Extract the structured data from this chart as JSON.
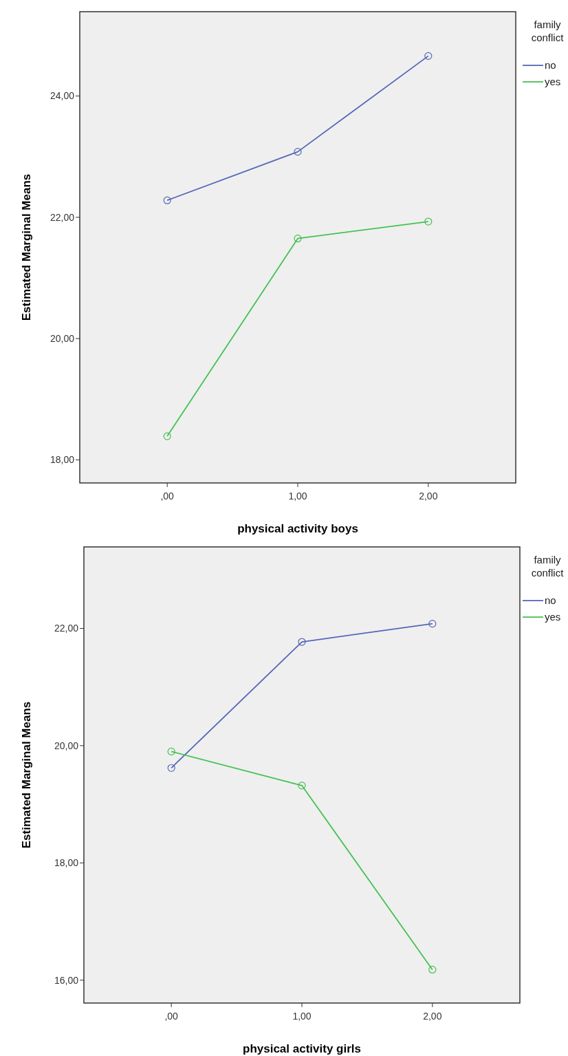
{
  "chart_data": [
    {
      "type": "line",
      "xlabel": "physical activity boys",
      "ylabel": "Estimated Marginal Means",
      "legend_title": "family conflict",
      "legend": "right",
      "marker": "circle",
      "grid": false,
      "categories": [
        ",00",
        "1,00",
        "2,00"
      ],
      "ylim": [
        17.62,
        25.39
      ],
      "yticks": [
        {
          "value": 18,
          "label": "18,00"
        },
        {
          "value": 20,
          "label": "20,00"
        },
        {
          "value": 22,
          "label": "22,00"
        },
        {
          "value": 24,
          "label": "24,00"
        }
      ],
      "series": [
        {
          "name": "no",
          "color": "#5466b8",
          "values": [
            22.28,
            23.08,
            24.66
          ]
        },
        {
          "name": "yes",
          "color": "#44c152",
          "values": [
            18.39,
            21.65,
            21.93
          ]
        }
      ]
    },
    {
      "type": "line",
      "xlabel": "physical activity girls",
      "ylabel": "Estimated Marginal Means",
      "legend_title": "family conflict",
      "legend": "right",
      "marker": "circle",
      "grid": false,
      "categories": [
        ",00",
        "1,00",
        "2,00"
      ],
      "ylim": [
        15.61,
        23.39
      ],
      "yticks": [
        {
          "value": 16,
          "label": "16,00"
        },
        {
          "value": 18,
          "label": "18,00"
        },
        {
          "value": 20,
          "label": "20,00"
        },
        {
          "value": 22,
          "label": "22,00"
        }
      ],
      "series": [
        {
          "name": "no",
          "color": "#5466b8",
          "values": [
            19.62,
            21.77,
            22.08
          ]
        },
        {
          "name": "yes",
          "color": "#44c152",
          "values": [
            19.9,
            19.32,
            16.18
          ]
        }
      ]
    }
  ]
}
